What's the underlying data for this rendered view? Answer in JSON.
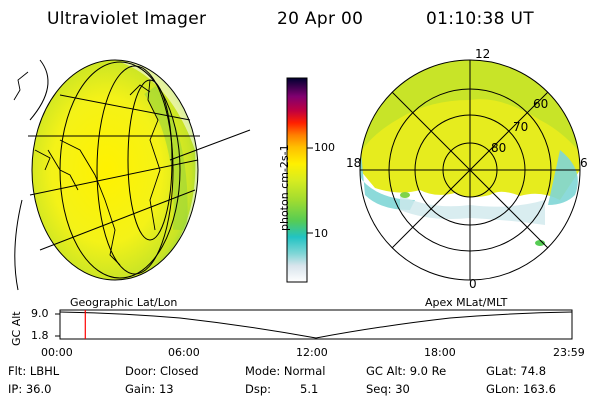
{
  "header": {
    "instrument": "Ultraviolet Imager",
    "date": "20 Apr 00",
    "time": "01:10:38 UT"
  },
  "colorbar": {
    "unit_label": "photon cm-2s-1",
    "ticks": [
      "100",
      "10"
    ],
    "scale": "log",
    "colors": [
      "#ffffff",
      "#d8e4ec",
      "#7fd6d6",
      "#22c3c3",
      "#7fd34a",
      "#c5e820",
      "#fff000",
      "#ffc000",
      "#ff8000",
      "#ff0000",
      "#c00040",
      "#800080",
      "#000030"
    ]
  },
  "left_panel": {
    "label": "Geographic Lat/Lon",
    "aurora_color": "#e4ec20"
  },
  "right_panel": {
    "label": "Apex MLat/MLT",
    "mlt_labels": {
      "top": "12",
      "bottom": "0",
      "left": "18",
      "right": "6"
    },
    "lat_labels": [
      "60",
      "70",
      "80"
    ]
  },
  "timeline": {
    "ylabel": "GC Alt",
    "yticks": [
      "9.0",
      "1.8"
    ],
    "xticks": [
      "00:00",
      "06:00",
      "12:00",
      "18:00",
      "23:59"
    ],
    "current_time_fraction": 0.0494,
    "marker_color": "#ff0000"
  },
  "footer": {
    "filter": "Flt: LBHL",
    "ip": "IP: 36.0",
    "door": "Door: Closed",
    "gain": "Gain: 13",
    "mode": "Mode: Normal",
    "dsp_label": "Dsp:",
    "dsp_value": "5.1",
    "gc_alt": "GC Alt: 9.0 Re",
    "seq": "Seq: 30",
    "glat": "GLat: 74.8",
    "glon": "GLon: 163.6"
  }
}
